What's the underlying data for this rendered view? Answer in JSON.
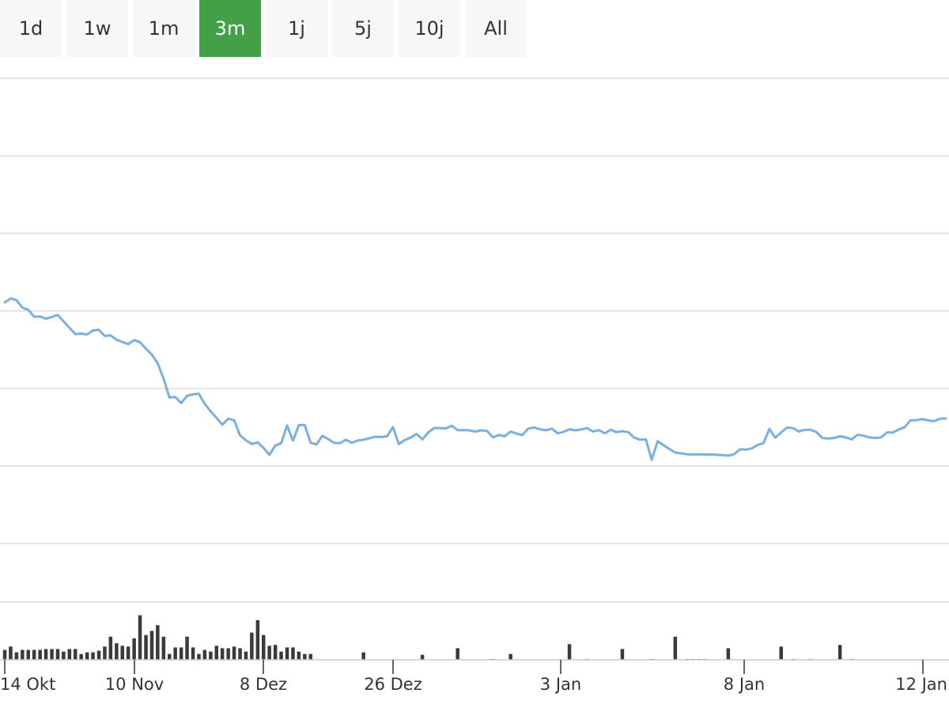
{
  "range_selector": {
    "buttons": [
      "1d",
      "1w",
      "1m",
      "3m",
      "1j",
      "5j",
      "10j",
      "All"
    ],
    "active": "3m"
  },
  "colors": {
    "line": "#7aafe3",
    "volume": "#3a3a3a",
    "grid": "#dddddd",
    "active_button": "#43a047",
    "button": "#f7f7f7"
  },
  "chart_data": {
    "type": "line",
    "title": "",
    "xlabel": "",
    "ylabel": "",
    "grid": true,
    "legend": "none",
    "x_tick_labels": [
      "14 Okt",
      "10 Nov",
      "8 Dez",
      "26 Dez",
      "3 Jan",
      "8 Jan",
      "12 Jan"
    ],
    "price_series": {
      "values": [
        42.9,
        44.3,
        43.7,
        41.1,
        40.4,
        38.0,
        38.1,
        37.3,
        37.9,
        38.6,
        36.4,
        34.2,
        32.0,
        32.2,
        31.9,
        33.3,
        33.5,
        31.4,
        31.6,
        30.1,
        29.3,
        28.6,
        30.0,
        29.2,
        27.0,
        25.0,
        22.0,
        16.7,
        10.2,
        10.4,
        8.3,
        10.8,
        11.3,
        11.5,
        8.0,
        5.5,
        3.2,
        0.9,
        2.9,
        2.4,
        -2.8,
        -4.5,
        -5.8,
        -5.2,
        -7.1,
        -9.5,
        -6.3,
        -5.5,
        0.6,
        -4.6,
        0.7,
        0.8,
        -5.4,
        -5.9,
        -3.0,
        -4.1,
        -5.4,
        -5.5,
        -4.3,
        -5.4,
        -4.6,
        -4.3,
        -3.8,
        -3.3,
        -3.4,
        -3.1,
        0.0,
        -5.8,
        -4.4,
        -3.6,
        -2.3,
        -4.2,
        -1.8,
        -0.3,
        -0.3,
        -0.4,
        0.5,
        -1.0,
        -1.0,
        -1.1,
        -1.5,
        -1.1,
        -1.3,
        -3.5,
        -2.7,
        -3.1,
        -1.5,
        -2.2,
        -2.7,
        -0.5,
        -0.1,
        -0.7,
        -1.1,
        -0.5,
        -2.1,
        -1.6,
        -0.7,
        -1.1,
        -0.8,
        -0.3,
        -1.5,
        -1.0,
        -2.1,
        -0.9,
        -1.7,
        -1.4,
        -1.7,
        -3.6,
        -4.3,
        -4.2,
        -11.2,
        -4.8,
        -6.2,
        -7.5,
        -8.7,
        -9.0,
        -9.3,
        -9.4,
        -9.3,
        -9.4,
        -9.4,
        -9.5,
        -9.6,
        -9.8,
        -9.3,
        -7.6,
        -7.7,
        -7.3,
        -6.1,
        -5.5,
        -0.6,
        -3.6,
        -1.8,
        -0.1,
        -0.3,
        -1.5,
        -0.9,
        -0.9,
        -1.7,
        -3.7,
        -3.9,
        -3.7,
        -3.1,
        -3.5,
        -4.2,
        -2.6,
        -2.9,
        -3.5,
        -3.7,
        -3.5,
        -1.8,
        -1.8,
        -0.8,
        0.0,
        2.4,
        2.4,
        2.8,
        2.3,
        2.1,
        2.9,
        3.0
      ],
      "y_domain": [
        -40,
        120
      ]
    },
    "volume_series": {
      "values": [
        12,
        16,
        9,
        12,
        12,
        12,
        12,
        13,
        13,
        13,
        10,
        13,
        13,
        7,
        9,
        9,
        11,
        16,
        28,
        20,
        17,
        16,
        26,
        54,
        30,
        35,
        42,
        28,
        7,
        15,
        15,
        28,
        15,
        7,
        12,
        10,
        17,
        14,
        14,
        16,
        14,
        10,
        33,
        48,
        30,
        17,
        18,
        10,
        15,
        15,
        10,
        7,
        7,
        0,
        0,
        0,
        0,
        0,
        0,
        0,
        0,
        0,
        0,
        0,
        0,
        0,
        0,
        0,
        0,
        0,
        0,
        0,
        0,
        0,
        0,
        0,
        0,
        0,
        0,
        0,
        0,
        0,
        0,
        0,
        0,
        0,
        0,
        0,
        0,
        0,
        0,
        0,
        0,
        0,
        0,
        0,
        0,
        0,
        0,
        0,
        0,
        0,
        0,
        0,
        0,
        0,
        0,
        0,
        0,
        0,
        0,
        0,
        0,
        0,
        0,
        0,
        0,
        0,
        0,
        0,
        0,
        0,
        0,
        0,
        0,
        0,
        0,
        0,
        0,
        0,
        0,
        0,
        0,
        0,
        0,
        0,
        0,
        0,
        0,
        0,
        0,
        0,
        0,
        0,
        0,
        0,
        0,
        0,
        0,
        0,
        0,
        0,
        0,
        0,
        0,
        0,
        0,
        0,
        0,
        0,
        0,
        0,
        0,
        0,
        0,
        0,
        0
      ],
      "sparse": [
        {
          "i": 61,
          "v": 9
        },
        {
          "i": 71,
          "v": 6
        },
        {
          "i": 77,
          "v": 14
        },
        {
          "i": 83,
          "v": 1
        },
        {
          "i": 86,
          "v": 7
        },
        {
          "i": 96,
          "v": 19
        },
        {
          "i": 99,
          "v": 1
        },
        {
          "i": 105,
          "v": 13
        },
        {
          "i": 110,
          "v": 1
        },
        {
          "i": 114,
          "v": 28
        },
        {
          "i": 116,
          "v": 1
        },
        {
          "i": 117,
          "v": 1
        },
        {
          "i": 118,
          "v": 1
        },
        {
          "i": 119,
          "v": 1
        },
        {
          "i": 123,
          "v": 14
        },
        {
          "i": 132,
          "v": 16
        },
        {
          "i": 134,
          "v": 1
        },
        {
          "i": 137,
          "v": 1
        },
        {
          "i": 142,
          "v": 18
        },
        {
          "i": 144,
          "v": 1
        }
      ],
      "y_domain": [
        0,
        70
      ]
    }
  }
}
